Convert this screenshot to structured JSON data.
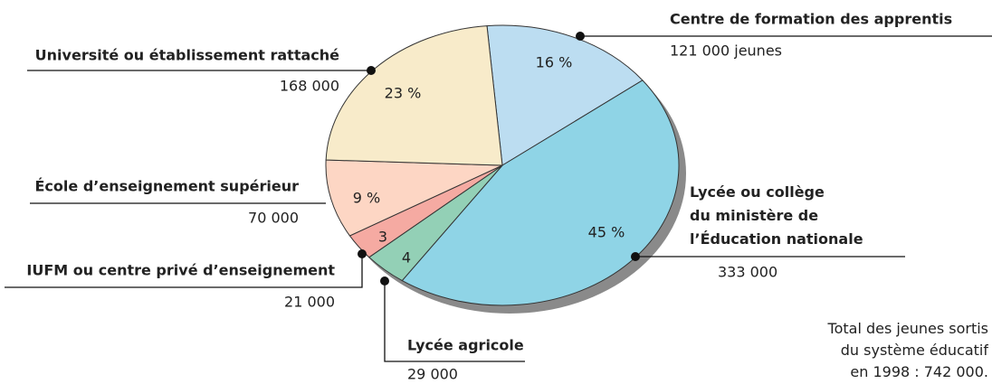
{
  "chart_data": {
    "type": "pie",
    "categories": [
      "Centre de formation des apprentis",
      "Lycée ou collège\ndu ministère de\nl’Éducation nationale",
      "Lycée agricole",
      "IUFM ou centre privé d’enseignement",
      "École d’enseignement supérieur",
      "Université ou établissement rattaché"
    ],
    "values": [
      16,
      45,
      4,
      3,
      9,
      23
    ],
    "value_labels": [
      "16 %",
      "45 %",
      "4",
      "3",
      "9 %",
      "23 %"
    ],
    "amount_labels": [
      "121 000 jeunes",
      "333 000",
      "29 000",
      "21 000",
      "70 000",
      "168 000"
    ],
    "colors": [
      "#bcddf1",
      "#8fd4e6",
      "#93d0b6",
      "#f5aaa2",
      "#fdd6c4",
      "#f8ebca"
    ],
    "note": "Total des jeunes sortis\ndu système éducatif\nen 1998 : 742 000."
  }
}
